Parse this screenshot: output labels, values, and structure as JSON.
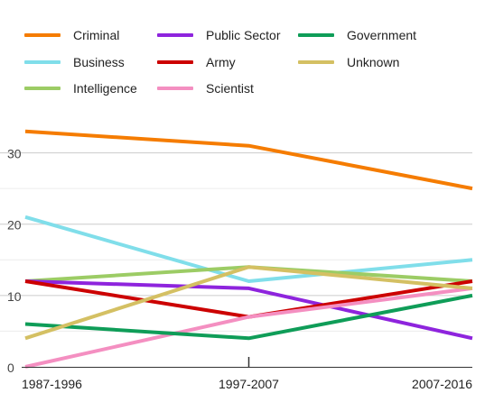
{
  "chart_data": {
    "type": "line",
    "title": "",
    "xlabel": "",
    "ylabel": "",
    "categories": [
      "1987-1996",
      "1997-2007",
      "2007-2016"
    ],
    "ylim": [
      0,
      35
    ],
    "yticks": [
      0,
      10,
      20,
      30
    ],
    "grid": true,
    "legend_position": "top",
    "series": [
      {
        "name": "Criminal",
        "color": "#f57c00",
        "values": [
          33,
          31,
          25
        ]
      },
      {
        "name": "Business",
        "color": "#80deea",
        "values": [
          21,
          12,
          15
        ]
      },
      {
        "name": "Intelligence",
        "color": "#9ccc65",
        "values": [
          12,
          14,
          12
        ]
      },
      {
        "name": "Public Sector",
        "color": "#8e24dd",
        "values": [
          12,
          11,
          4
        ]
      },
      {
        "name": "Army",
        "color": "#cc0000",
        "values": [
          12,
          7,
          12
        ]
      },
      {
        "name": "Scientist",
        "color": "#f48fc1",
        "values": [
          0,
          7,
          11
        ]
      },
      {
        "name": "Government",
        "color": "#0f9d58",
        "values": [
          6,
          4,
          10
        ]
      },
      {
        "name": "Unknown",
        "color": "#d4c063",
        "values": [
          4,
          14,
          11
        ]
      }
    ]
  }
}
